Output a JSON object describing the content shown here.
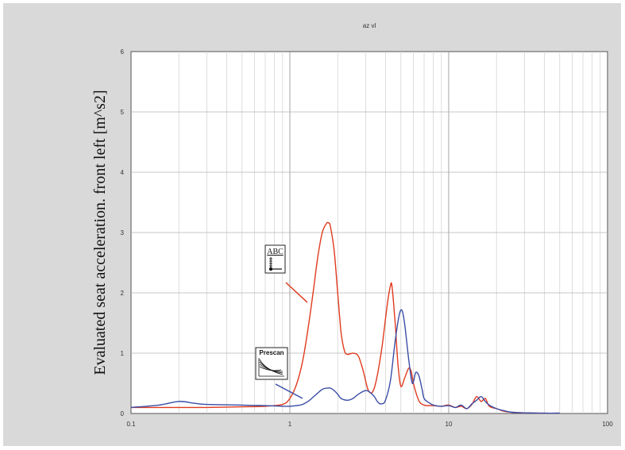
{
  "chart_data": {
    "type": "line",
    "title": "az vl",
    "xlabel": "",
    "ylabel": "Evaluated seat acceleration. front left [m^s2]",
    "xscale": "log",
    "xlim": [
      0.1,
      100
    ],
    "ylim": [
      0,
      6
    ],
    "xticks": [
      {
        "value": 0.1,
        "label": "0.1"
      },
      {
        "value": 1,
        "label": "1"
      },
      {
        "value": 10,
        "label": "10"
      },
      {
        "value": 100,
        "label": "100"
      }
    ],
    "yticks": [
      {
        "value": 0,
        "label": "0"
      },
      {
        "value": 1,
        "label": "1"
      },
      {
        "value": 2,
        "label": "2"
      },
      {
        "value": 3,
        "label": "3"
      },
      {
        "value": 4,
        "label": "4"
      },
      {
        "value": 5,
        "label": "5"
      },
      {
        "value": 6,
        "label": "6"
      }
    ],
    "grid": true,
    "series": [
      {
        "name": "ABC",
        "color": "#e03a1e",
        "x": [
          0.1,
          0.2,
          0.3,
          0.5,
          0.7,
          0.9,
          1.0,
          1.1,
          1.2,
          1.3,
          1.4,
          1.5,
          1.6,
          1.7,
          1.75,
          1.8,
          1.9,
          2.0,
          2.1,
          2.2,
          2.3,
          2.5,
          2.7,
          2.9,
          3.1,
          3.3,
          3.5,
          3.8,
          4.1,
          4.3,
          4.4,
          4.6,
          4.8,
          5.0,
          5.3,
          5.6,
          5.8,
          6.0,
          6.3,
          6.6,
          7.0,
          7.5,
          8,
          9,
          10,
          11,
          12,
          13,
          14,
          15,
          16,
          17,
          18,
          20,
          22,
          25,
          30,
          40,
          50
        ],
        "values": [
          0.1,
          0.1,
          0.1,
          0.11,
          0.12,
          0.15,
          0.25,
          0.48,
          0.85,
          1.4,
          2.0,
          2.6,
          3.0,
          3.15,
          3.16,
          3.1,
          2.7,
          2.0,
          1.35,
          1.05,
          0.98,
          1.0,
          0.95,
          0.7,
          0.4,
          0.35,
          0.55,
          1.1,
          1.8,
          2.12,
          2.1,
          1.5,
          0.8,
          0.45,
          0.6,
          0.75,
          0.7,
          0.5,
          0.3,
          0.18,
          0.14,
          0.13,
          0.13,
          0.12,
          0.14,
          0.1,
          0.12,
          0.08,
          0.15,
          0.28,
          0.2,
          0.25,
          0.12,
          0.08,
          0.04,
          0.02,
          0.01,
          0.005,
          0.005
        ]
      },
      {
        "name": "Prescan",
        "color": "#3a4da6",
        "x": [
          0.1,
          0.15,
          0.2,
          0.25,
          0.3,
          0.5,
          0.7,
          0.9,
          1.0,
          1.1,
          1.2,
          1.3,
          1.4,
          1.5,
          1.6,
          1.7,
          1.8,
          1.9,
          2.0,
          2.1,
          2.3,
          2.5,
          2.7,
          3.0,
          3.2,
          3.4,
          3.6,
          3.8,
          4.0,
          4.3,
          4.6,
          4.9,
          5.1,
          5.3,
          5.6,
          5.9,
          6.2,
          6.5,
          6.8,
          7.0,
          7.5,
          8,
          9,
          10,
          11,
          12,
          13,
          14,
          15,
          16,
          17,
          18,
          20,
          22,
          25,
          30,
          40,
          50
        ],
        "values": [
          0.1,
          0.14,
          0.2,
          0.17,
          0.15,
          0.14,
          0.13,
          0.12,
          0.12,
          0.13,
          0.15,
          0.2,
          0.27,
          0.34,
          0.4,
          0.42,
          0.42,
          0.38,
          0.32,
          0.25,
          0.22,
          0.25,
          0.32,
          0.38,
          0.35,
          0.28,
          0.18,
          0.16,
          0.22,
          0.55,
          1.2,
          1.65,
          1.7,
          1.45,
          0.9,
          0.5,
          0.68,
          0.62,
          0.4,
          0.25,
          0.18,
          0.14,
          0.12,
          0.13,
          0.1,
          0.14,
          0.08,
          0.16,
          0.22,
          0.28,
          0.2,
          0.14,
          0.08,
          0.05,
          0.02,
          0.01,
          0.005,
          0.005
        ]
      }
    ],
    "annotations": [
      {
        "text": "ABC",
        "target_series": "ABC",
        "icon": "test-rig-icon"
      },
      {
        "text": "Prescan",
        "target_series": "Prescan",
        "icon": "simulation-plot-icon"
      }
    ]
  }
}
